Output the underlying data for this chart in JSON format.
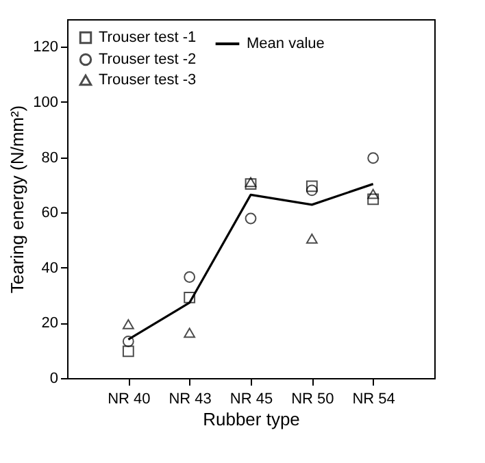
{
  "chart_data": {
    "type": "scatter",
    "xlabel": "Rubber type",
    "ylabel": "Tearing energy (N/mm²)",
    "categories": [
      "NR 40",
      "NR 43",
      "NR 45",
      "NR 50",
      "NR 54"
    ],
    "series": [
      {
        "name": "Trouser test -1",
        "color": "#000000",
        "marker": "square",
        "values": [
          9.7,
          29.2,
          70.3,
          69.5,
          64.8
        ]
      },
      {
        "name": "Trouser test -2",
        "color": "#000000",
        "marker": "circle",
        "values": [
          13.3,
          36.6,
          57.8,
          68,
          79.7
        ]
      },
      {
        "name": "Trouser test -3",
        "color": "#000000",
        "marker": "triangle",
        "values": [
          19.5,
          16.4,
          71,
          50.5,
          66.7
        ]
      },
      {
        "name": "Mean value",
        "type": "line",
        "color": "#000000",
        "values": [
          14,
          27.3,
          66.4,
          62.8,
          70.3
        ]
      }
    ],
    "ylim": [
      0,
      130
    ],
    "yticks": [
      0,
      20,
      40,
      60,
      80,
      100,
      120
    ],
    "grid": false,
    "legend": "top left"
  }
}
